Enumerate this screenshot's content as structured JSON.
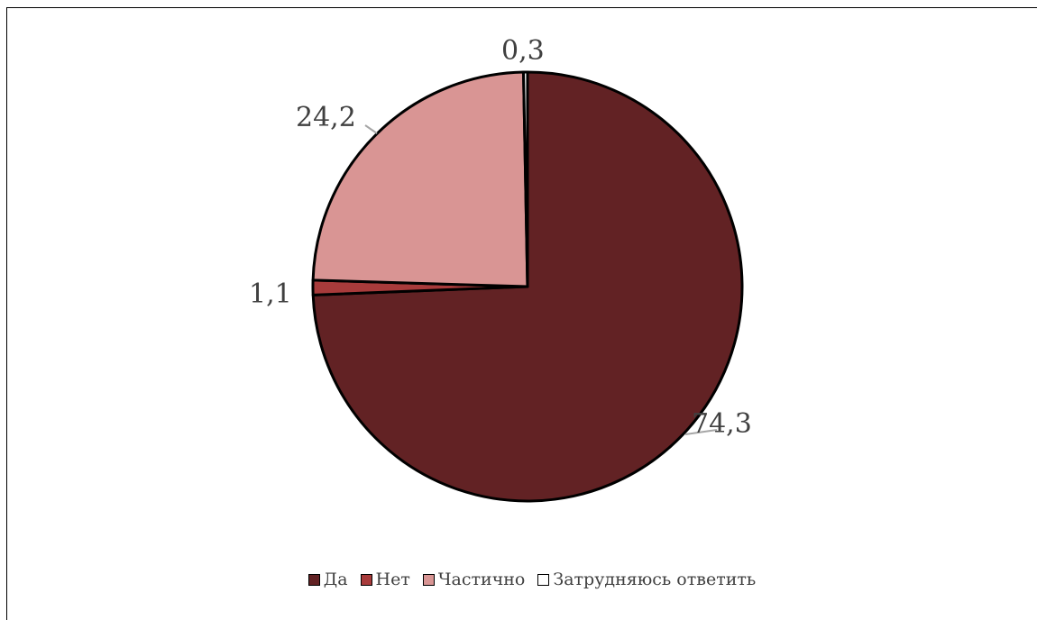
{
  "chart_data": {
    "type": "pie",
    "title": "",
    "categories": [
      "Да",
      "Нет",
      "Частично",
      "Затрудняюсь ответить"
    ],
    "values": [
      74.3,
      1.1,
      24.2,
      0.3
    ],
    "data_labels": [
      "74,3",
      "1,1",
      "24,2",
      "0,3"
    ],
    "colors": [
      "#622224",
      "#a83b3b",
      "#d99594",
      "#ffffff"
    ],
    "legend_position": "bottom",
    "start_angle": "12 o'clock, clockwise"
  }
}
